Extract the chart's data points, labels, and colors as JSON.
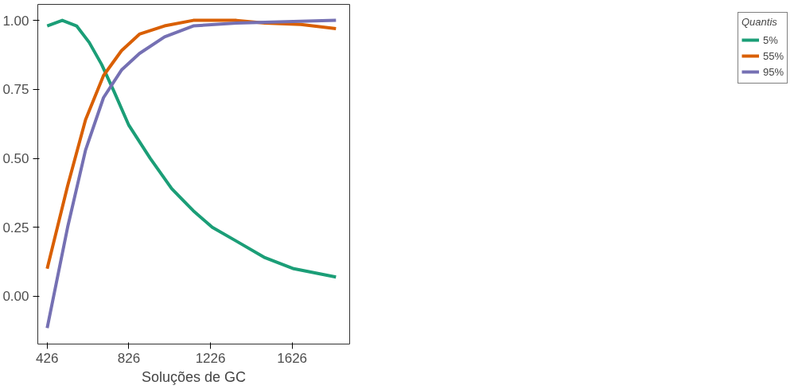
{
  "chart_data": {
    "type": "line",
    "xlabel": "Soluções de GC",
    "legend_title": "Quantis",
    "legend": "right",
    "grid": false,
    "marker": "none",
    "line_style": "solid",
    "xlim": [
      380,
      1908
    ],
    "ylim": [
      -0.173,
      1.058
    ],
    "xticks": [
      426,
      826,
      1226,
      1626
    ],
    "yticks": [
      {
        "value": 0,
        "label": "0.00"
      },
      {
        "value": 0.25,
        "label": "0.25"
      },
      {
        "value": 0.5,
        "label": "0.50"
      },
      {
        "value": 0.75,
        "label": "0.75"
      },
      {
        "value": 1,
        "label": "1.00"
      }
    ],
    "series": [
      {
        "name": "5%",
        "color": "#1b9e77",
        "x": [
          426,
          500,
          570,
          632,
          693,
          755,
          826,
          931,
          1036,
          1142,
          1235,
          1353,
          1493,
          1634,
          1841
        ],
        "values": [
          0.98,
          1.0,
          0.98,
          0.92,
          0.84,
          0.74,
          0.62,
          0.5,
          0.39,
          0.31,
          0.25,
          0.2,
          0.14,
          0.1,
          0.07
        ]
      },
      {
        "name": "55%",
        "color": "#d95f02",
        "x": [
          426,
          526,
          614,
          702,
          790,
          878,
          1001,
          1142,
          1353,
          1493,
          1669,
          1841
        ],
        "values": [
          0.1,
          0.4,
          0.64,
          0.8,
          0.89,
          0.95,
          0.98,
          1.0,
          1.0,
          0.99,
          0.985,
          0.97
        ]
      },
      {
        "name": "95%",
        "color": "#7570b3",
        "x": [
          426,
          526,
          614,
          702,
          790,
          878,
          1001,
          1142,
          1353,
          1841
        ],
        "values": [
          -0.115,
          0.25,
          0.53,
          0.72,
          0.82,
          0.88,
          0.94,
          0.98,
          0.99,
          1.0
        ]
      }
    ]
  }
}
